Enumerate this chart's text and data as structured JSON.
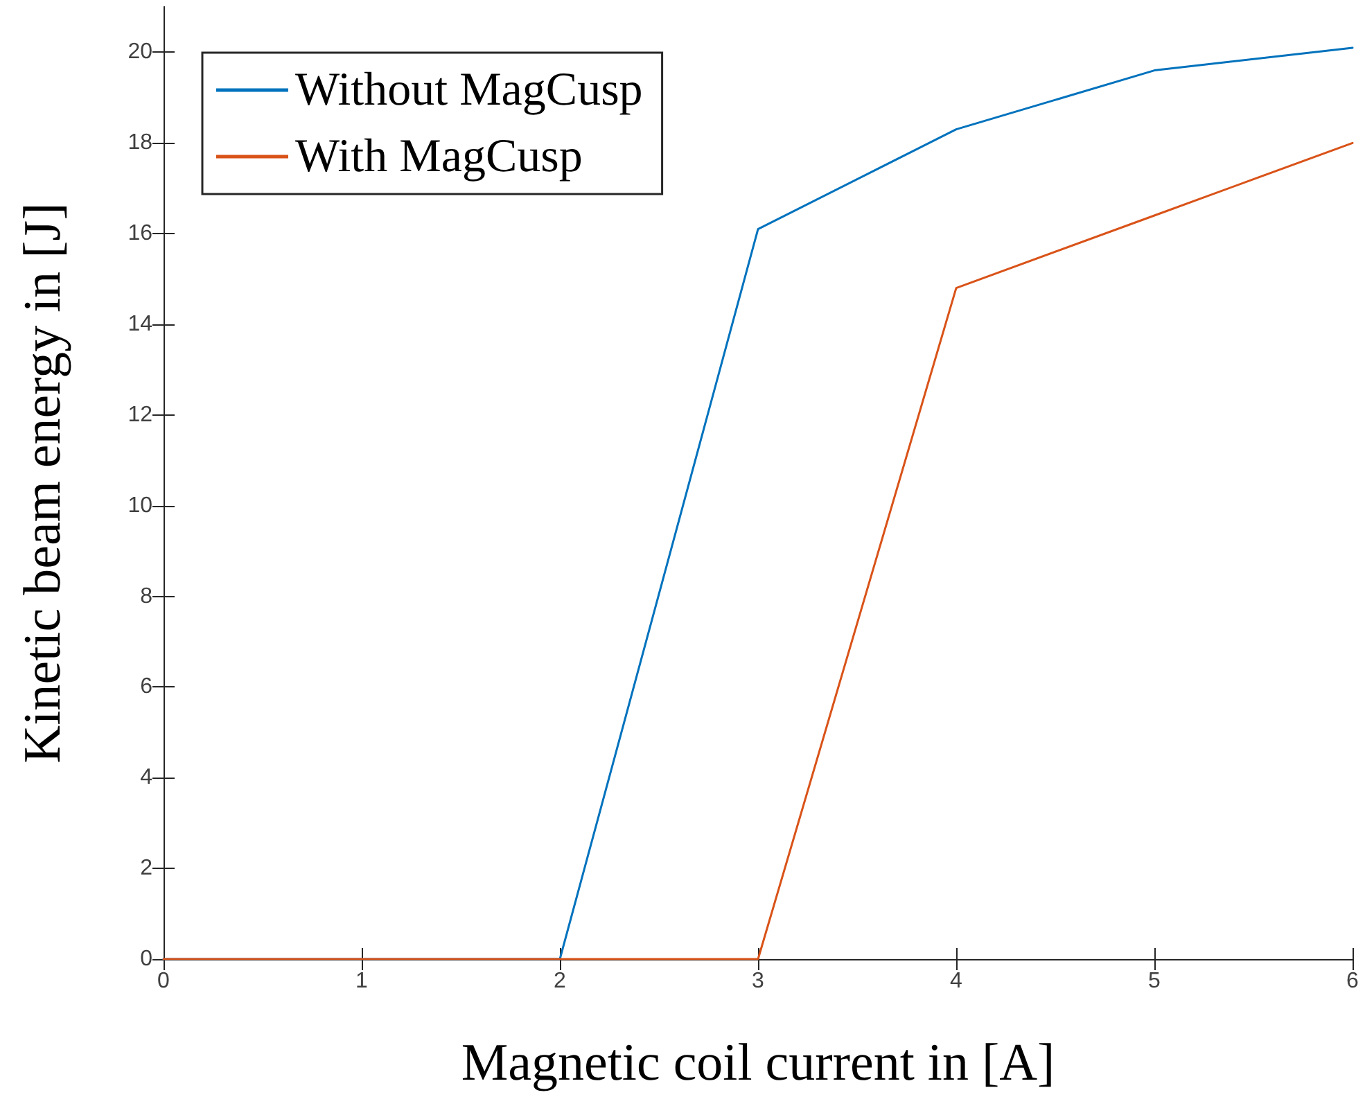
{
  "chart_data": {
    "type": "line",
    "xlabel": "Magnetic coil current in [A]",
    "ylabel": "Kinetic beam energy in [J]",
    "x": [
      0,
      1,
      2,
      3,
      4,
      5,
      6
    ],
    "series": [
      {
        "name": "Without MagCusp",
        "color": "#0072bd",
        "values": [
          0,
          0,
          0,
          16.1,
          18.3,
          19.6,
          20.1
        ]
      },
      {
        "name": "With MagCusp",
        "color": "#d95319",
        "values": [
          0,
          0,
          0,
          0,
          14.8,
          16.4,
          18.0
        ]
      }
    ],
    "xlim": [
      0,
      6
    ],
    "xticks": [
      0,
      1,
      2,
      3,
      4,
      5,
      6
    ],
    "ylim": [
      0,
      21
    ],
    "yticks": [
      0,
      2,
      4,
      6,
      8,
      10,
      12,
      14,
      16,
      18,
      20
    ],
    "grid": false,
    "legend": "top left",
    "marker": "none",
    "line_style": "solid"
  }
}
